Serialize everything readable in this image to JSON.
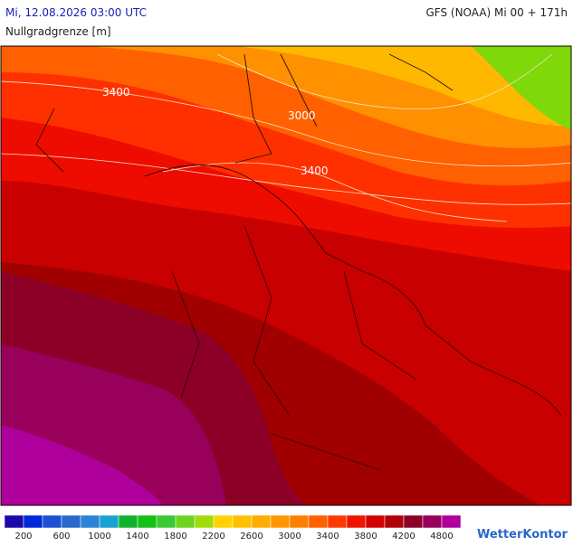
{
  "header": {
    "left": "Mi, 12.08.2026 03:00 UTC",
    "right": "GFS (NOAA) Mi 00 + 171h",
    "subtitle": "Nullgradgrenze [m]"
  },
  "map": {
    "contour_labels": [
      "3400",
      "3000",
      "3400"
    ]
  },
  "legend": {
    "colors": [
      "#1a0aa8",
      "#0028d8",
      "#1e50d4",
      "#2a68cc",
      "#2c82d6",
      "#18a2d2",
      "#10b42c",
      "#14c014",
      "#3cc832",
      "#6cd41e",
      "#a0dc0a",
      "#ffd200",
      "#ffc000",
      "#ffac00",
      "#ff9800",
      "#ff8000",
      "#ff6000",
      "#ff3a00",
      "#f01400",
      "#d20000",
      "#b00008",
      "#8c0028",
      "#98005c",
      "#b0009c"
    ],
    "ticks": [
      200,
      600,
      1000,
      1400,
      1800,
      2200,
      2600,
      3000,
      3400,
      3800,
      4200,
      4800
    ]
  },
  "logo": "WetterKontor"
}
